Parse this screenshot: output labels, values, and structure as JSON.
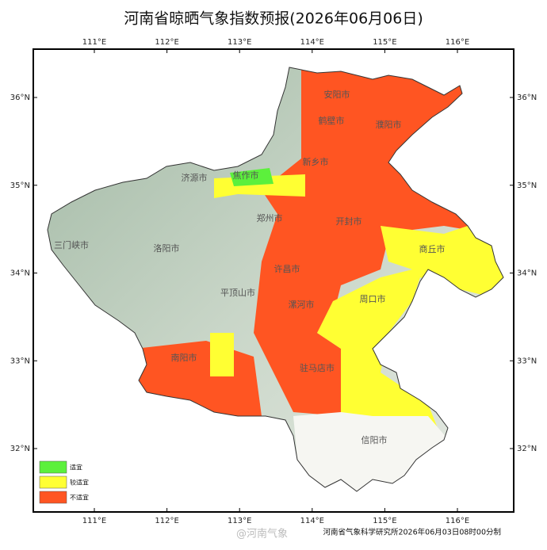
{
  "title": "河南省晾晒气象指数预报(2026年06月06日)",
  "map": {
    "lon_ticks": [
      {
        "value": 111,
        "label": "111°E"
      },
      {
        "value": 112,
        "label": "112°E"
      },
      {
        "value": 113,
        "label": "113°E"
      },
      {
        "value": 114,
        "label": "114°E"
      },
      {
        "value": 115,
        "label": "115°E"
      },
      {
        "value": 116,
        "label": "116°E"
      }
    ],
    "lat_ticks": [
      {
        "value": 36,
        "label": "36°N"
      },
      {
        "value": 35,
        "label": "35°N"
      },
      {
        "value": 34,
        "label": "34°N"
      },
      {
        "value": 33,
        "label": "33°N"
      },
      {
        "value": 32,
        "label": "32°N"
      }
    ],
    "cities": [
      "安阳市",
      "鹤壁市",
      "濮阳市",
      "新乡市",
      "焦作市",
      "济源市",
      "郑州市",
      "开封市",
      "三门峡市",
      "洛阳市",
      "商丘市",
      "许昌市",
      "平顶山市",
      "漯河市",
      "周口市",
      "南阳市",
      "驻马店市",
      "信阳市"
    ]
  },
  "legend": [
    {
      "label": "适宜",
      "color": "#5cf03c"
    },
    {
      "label": "较适宜",
      "color": "#ffff33"
    },
    {
      "label": "不适宜",
      "color": "#ff5522"
    }
  ],
  "credit": "河南省气象科学研究所2026年06月03日08时00分制",
  "watermark": "@河南气象"
}
